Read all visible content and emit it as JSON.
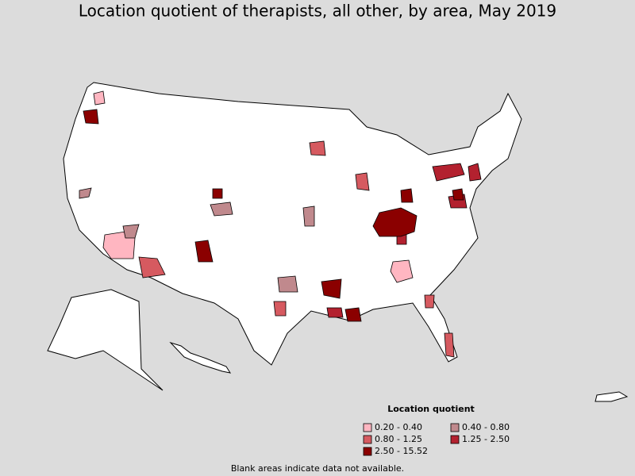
{
  "title": "Location quotient of therapists, all other, by area, May 2019",
  "legend": {
    "title": "Location quotient",
    "items": [
      {
        "label": "0.20 - 0.40",
        "color": "#ffb6c1"
      },
      {
        "label": "0.40 - 0.80",
        "color": "#c0898d"
      },
      {
        "label": "0.80 - 1.25",
        "color": "#d65a60"
      },
      {
        "label": "1.25 - 2.50",
        "color": "#b3212f"
      },
      {
        "label": "2.50 - 15.52",
        "color": "#8b0000"
      }
    ]
  },
  "footnote": "Blank areas indicate data not available."
}
